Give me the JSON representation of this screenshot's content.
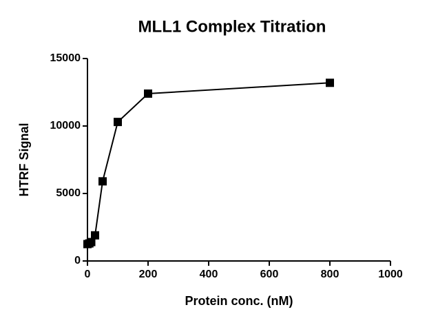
{
  "chart_data": {
    "type": "line",
    "title": "MLL1 Complex Titration",
    "x_label": "Protein conc. (nM)",
    "y_label": "HTRF Signal",
    "x": [
      0,
      6.25,
      12.5,
      25,
      50,
      100,
      200,
      800
    ],
    "series": [
      {
        "name": "HTRF Signal",
        "color": "#000000",
        "values": [
          1250,
          1300,
          1400,
          1900,
          5900,
          10300,
          12400,
          13200
        ]
      }
    ],
    "xlim": [
      0,
      1000
    ],
    "xticks": [
      0,
      200,
      400,
      600,
      800,
      1000
    ],
    "ylim": [
      0,
      15000
    ],
    "yticks": [
      0,
      5000,
      10000,
      15000
    ],
    "grid": false
  }
}
